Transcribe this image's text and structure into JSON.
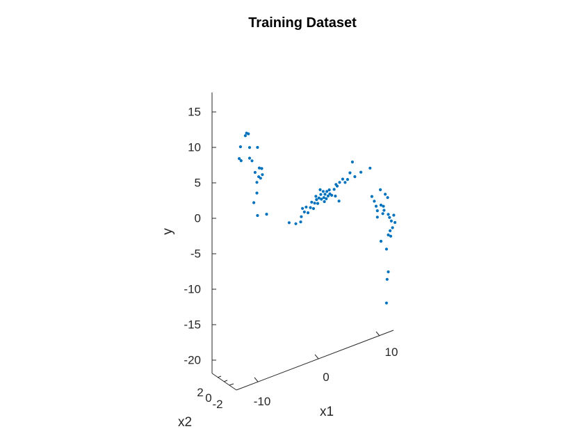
{
  "chart_data": {
    "type": "scatter3d",
    "title": "Training Dataset",
    "xlabel": "x1",
    "ylabel": "x2",
    "zlabel": "y",
    "ticks": {
      "x1": [
        "-10",
        "0",
        "10"
      ],
      "x2": [
        "-2",
        "0",
        "2"
      ],
      "y": [
        "15",
        "10",
        "5",
        "0",
        "-5",
        "-10",
        "-15",
        "-20"
      ]
    },
    "xlim": [
      -15,
      15
    ],
    "x2lim": [
      -3,
      3
    ],
    "ylim": [
      -22,
      18
    ],
    "grid": false,
    "marker_color": "#0072BD",
    "points": [
      [
        -11.9,
        0,
        15.5
      ],
      [
        -11.7,
        0,
        15.8
      ],
      [
        -11.4,
        0,
        15.6
      ],
      [
        -12.7,
        0,
        14.2
      ],
      [
        -11.2,
        0,
        13.6
      ],
      [
        -12.9,
        0,
        12.6
      ],
      [
        -12.6,
        0,
        12.2
      ],
      [
        -11.2,
        0,
        12.1
      ],
      [
        -10.8,
        0,
        11.6
      ],
      [
        -9.9,
        0,
        13.2
      ],
      [
        -10.3,
        0,
        9.8
      ],
      [
        -9.6,
        0,
        10.2
      ],
      [
        -9.2,
        0,
        10.0
      ],
      [
        -9.7,
        0,
        9.0
      ],
      [
        -9.4,
        0,
        8.7
      ],
      [
        -9.1,
        0,
        9.1
      ],
      [
        -10.0,
        0,
        8.3
      ],
      [
        -10.0,
        0,
        6.8
      ],
      [
        -10.5,
        0,
        5.6
      ],
      [
        -9.9,
        0,
        3.6
      ],
      [
        -8.4,
        0,
        3.3
      ],
      [
        -4.7,
        0,
        0.9
      ],
      [
        -3.6,
        0,
        0.4
      ],
      [
        -2.5,
        0,
        2.2
      ],
      [
        -2.2,
        0,
        1.6
      ],
      [
        -2.8,
        0,
        0.4
      ],
      [
        -2.7,
        0,
        1.1
      ],
      [
        -1.9,
        0,
        2.2
      ],
      [
        -1.6,
        0,
        1.3
      ],
      [
        -1.2,
        0,
        1.9
      ],
      [
        -1.0,
        0,
        2.6
      ],
      [
        -0.7,
        0,
        1.6
      ],
      [
        -0.5,
        0,
        2.3
      ],
      [
        -0.3,
        0,
        3.2
      ],
      [
        -0.2,
        0,
        2.7
      ],
      [
        0.0,
        0,
        2.1
      ],
      [
        0.2,
        0,
        2.8
      ],
      [
        0.4,
        0,
        3.9
      ],
      [
        0.5,
        0,
        3.2
      ],
      [
        0.6,
        0,
        2.5
      ],
      [
        0.9,
        0,
        3.5
      ],
      [
        1.0,
        0,
        2.6
      ],
      [
        1.1,
        0,
        2.0
      ],
      [
        1.2,
        0,
        3.0
      ],
      [
        1.4,
        0,
        2.3
      ],
      [
        1.5,
        0,
        3.3
      ],
      [
        1.7,
        0,
        2.6
      ],
      [
        1.9,
        0,
        3.4
      ],
      [
        2.0,
        0,
        2.8
      ],
      [
        2.3,
        0,
        2.5
      ],
      [
        2.7,
        0,
        3.2
      ],
      [
        2.9,
        0,
        2.2
      ],
      [
        3.0,
        0,
        3.8
      ],
      [
        3.2,
        0,
        3.5
      ],
      [
        3.5,
        0,
        1.3
      ],
      [
        3.6,
        0,
        3.9
      ],
      [
        4.1,
        0,
        4.2
      ],
      [
        4.5,
        0,
        3.6
      ],
      [
        4.9,
        0,
        3.9
      ],
      [
        5.3,
        0,
        4.7
      ],
      [
        5.7,
        0,
        6.1
      ],
      [
        6.1,
        0,
        3.9
      ],
      [
        7.1,
        0,
        4.2
      ],
      [
        8.6,
        0,
        4.3
      ],
      [
        8.9,
        0,
        0.2
      ],
      [
        9.3,
        0,
        -0.6
      ],
      [
        9.6,
        0,
        -1.4
      ],
      [
        9.8,
        0,
        -2.1
      ],
      [
        9.8,
        0,
        -3.0
      ],
      [
        10.4,
        0,
        -1.5
      ],
      [
        10.8,
        0,
        -1.8
      ],
      [
        10.9,
        0,
        -2.4
      ],
      [
        11.1,
        0,
        -0.2
      ],
      [
        10.3,
        0,
        0.7
      ],
      [
        11.5,
        0,
        -0.8
      ],
      [
        10.7,
        0,
        -2.8
      ],
      [
        11.6,
        0,
        -3.2
      ],
      [
        11.8,
        0,
        -3.7
      ],
      [
        12.1,
        0,
        -4.3
      ],
      [
        12.5,
        0,
        -3.6
      ],
      [
        12.7,
        0,
        -4.7
      ],
      [
        12.3,
        0,
        -5.3
      ],
      [
        11.9,
        0,
        -5.6
      ],
      [
        12.0,
        0,
        -6.4
      ],
      [
        11.6,
        0,
        -6.1
      ],
      [
        10.4,
        0,
        -6.6
      ],
      [
        11.3,
        0,
        -8.0
      ],
      [
        11.6,
        0,
        -11.3
      ],
      [
        11.4,
        0,
        -12.3
      ],
      [
        11.3,
        0,
        -15.6
      ]
    ]
  }
}
